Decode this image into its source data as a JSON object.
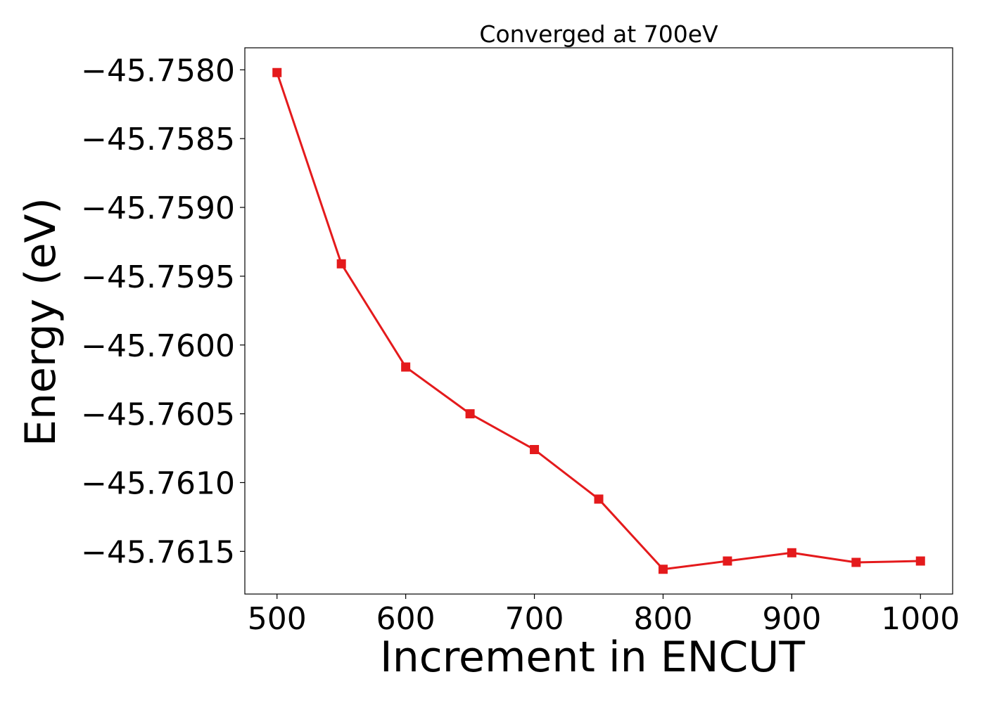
{
  "chart_data": {
    "type": "line",
    "title": "Converged at 700eV",
    "xlabel": "Increment in ENCUT",
    "ylabel": "Energy (eV)",
    "x": [
      500,
      550,
      600,
      650,
      700,
      750,
      800,
      850,
      900,
      950,
      1000
    ],
    "series": [
      {
        "values": [
          -45.75802,
          -45.75941,
          -45.76016,
          -45.7605,
          -45.76076,
          -45.76112,
          -45.76163,
          -45.76157,
          -45.76151,
          -45.76158,
          -45.76157
        ],
        "color": "#e41a1c",
        "marker": "square"
      }
    ],
    "xticks": [
      500,
      600,
      700,
      800,
      900,
      1000
    ],
    "xtick_labels": [
      "500",
      "600",
      "700",
      "800",
      "900",
      "1000"
    ],
    "yticks": [
      -45.758,
      -45.7585,
      -45.759,
      -45.7595,
      -45.76,
      -45.7605,
      -45.761,
      -45.7615
    ],
    "ytick_labels": [
      "−45.7580",
      "−45.7585",
      "−45.7590",
      "−45.7595",
      "−45.7600",
      "−45.7605",
      "−45.7610",
      "−45.7615"
    ],
    "xlim": [
      475,
      1025
    ],
    "ylim": [
      -45.76181,
      -45.75784
    ],
    "grid": false,
    "legend": "none"
  }
}
